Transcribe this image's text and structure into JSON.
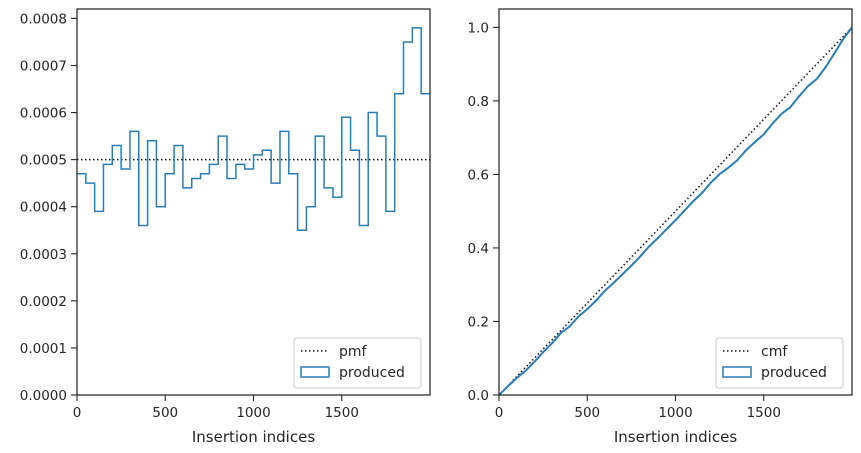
{
  "chart_data": [
    {
      "type": "histogram-step",
      "xlabel": "Insertion indices",
      "ylabel": "",
      "xlim": [
        0,
        2000
      ],
      "ylim": [
        0,
        0.00082
      ],
      "xticks": [
        0,
        500,
        1000,
        1500
      ],
      "xtick_labels": [
        "0",
        "500",
        "1000",
        "1500"
      ],
      "yticks": [
        0,
        0.0001,
        0.0002,
        0.0003,
        0.0004,
        0.0005,
        0.0006,
        0.0007,
        0.0008
      ],
      "ytick_labels": [
        "0.0000",
        "0.0001",
        "0.0002",
        "0.0003",
        "0.0004",
        "0.0005",
        "0.0006",
        "0.0007",
        "0.0008"
      ],
      "grid": false,
      "legend_position": "bottom-right",
      "reference": {
        "name": "pmf",
        "style": "dotted",
        "color": "#111111",
        "y": 0.0005
      },
      "series": [
        {
          "name": "produced",
          "color": "#2a7db4",
          "bin_width": 50,
          "bin_start": 0,
          "values": [
            0.00047,
            0.00045,
            0.00039,
            0.00049,
            0.00053,
            0.00048,
            0.00056,
            0.00036,
            0.00054,
            0.0004,
            0.00047,
            0.00053,
            0.00044,
            0.00046,
            0.00047,
            0.00049,
            0.00055,
            0.00046,
            0.00049,
            0.00048,
            0.00051,
            0.00052,
            0.00045,
            0.00056,
            0.00047,
            0.00035,
            0.0004,
            0.00055,
            0.00044,
            0.00042,
            0.00059,
            0.00052,
            0.00036,
            0.0006,
            0.00055,
            0.00039,
            0.00064,
            0.00075,
            0.00078,
            0.00064
          ]
        }
      ]
    },
    {
      "type": "line",
      "xlabel": "Insertion indices",
      "ylabel": "",
      "xlim": [
        0,
        2000
      ],
      "ylim": [
        0,
        1.05
      ],
      "xticks": [
        0,
        500,
        1000,
        1500
      ],
      "xtick_labels": [
        "0",
        "500",
        "1000",
        "1500"
      ],
      "yticks": [
        0,
        0.2,
        0.4,
        0.6,
        0.8,
        1.0
      ],
      "ytick_labels": [
        "0.0",
        "0.2",
        "0.4",
        "0.6",
        "0.8",
        "1.0"
      ],
      "grid": false,
      "legend_position": "bottom-right",
      "reference": {
        "name": "cmf",
        "style": "dotted",
        "color": "#111111",
        "x": [
          0,
          2000
        ],
        "y": [
          0,
          1.0
        ]
      },
      "series": [
        {
          "name": "produced",
          "color": "#2a7db4",
          "style": "step"
        }
      ]
    }
  ]
}
